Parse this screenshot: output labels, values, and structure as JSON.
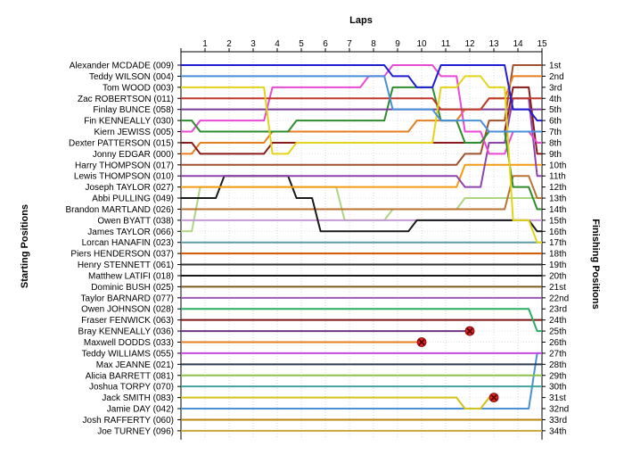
{
  "chart_data": {
    "type": "line",
    "title": "",
    "xlabel": "Laps",
    "ylabel_left": "Starting Positions",
    "ylabel_right": "Finishing Positions",
    "x": [
      1,
      2,
      3,
      4,
      5,
      6,
      7,
      8,
      9,
      10,
      11,
      12,
      13,
      14,
      15
    ],
    "finishing_labels": [
      "1st",
      "2nd",
      "3rd",
      "4th",
      "5th",
      "6th",
      "7th",
      "8th",
      "9th",
      "10th",
      "11th",
      "12th",
      "13th",
      "14th",
      "15th",
      "16th",
      "17th",
      "18th",
      "19th",
      "20th",
      "21st",
      "22nd",
      "23rd",
      "24th",
      "25th",
      "26th",
      "27th",
      "28th",
      "29th",
      "30th",
      "31st",
      "32nd",
      "33rd",
      "34th"
    ],
    "grid": true,
    "retirement_marker": "red-x",
    "series": [
      {
        "name": "Alexander MCDADE (009)",
        "color": "#1f1fd1",
        "retired_after": null,
        "positions": [
          1,
          1,
          1,
          1,
          1,
          1,
          1,
          1,
          1,
          2,
          3,
          1,
          1,
          1,
          5,
          6
        ]
      },
      {
        "name": "Teddy WILSON (004)",
        "color": "#4a90d9",
        "retired_after": null,
        "positions": [
          2,
          2,
          2,
          2,
          2,
          2,
          2,
          2,
          2,
          5,
          5,
          6,
          6,
          7,
          7,
          7
        ]
      },
      {
        "name": "Tom WOOD (003)",
        "color": "#e3d41a",
        "retired_after": null,
        "positions": [
          3,
          3,
          3,
          3,
          9,
          8,
          8,
          8,
          8,
          8,
          8,
          3,
          2,
          3,
          15,
          17
        ]
      },
      {
        "name": "Zac ROBERTSON (011)",
        "color": "#c0392b",
        "retired_after": null,
        "positions": [
          4,
          4,
          4,
          4,
          4,
          4,
          4,
          4,
          4,
          4,
          4,
          5,
          5,
          4,
          4,
          4
        ]
      },
      {
        "name": "Finlay BUNCE (058)",
        "color": "#7d3c98",
        "retired_after": null,
        "positions": [
          5,
          5,
          5,
          5,
          5,
          5,
          5,
          5,
          5,
          5,
          5,
          5,
          5,
          5,
          5,
          5
        ]
      },
      {
        "name": "Fin KENNEALLY (030)",
        "color": "#2e8b2e",
        "retired_after": null,
        "positions": [
          6,
          7,
          7,
          7,
          7,
          6,
          6,
          6,
          6,
          3,
          3,
          6,
          8,
          7,
          12,
          14
        ]
      },
      {
        "name": "Kiern JEWISS (005)",
        "color": "#e84ad3",
        "retired_after": null,
        "positions": [
          7,
          6,
          6,
          6,
          3,
          3,
          3,
          3,
          2,
          1,
          1,
          2,
          7,
          9,
          7,
          8
        ]
      },
      {
        "name": "Dexter PATTERSON (015)",
        "color": "#8b1a1a",
        "retired_after": null,
        "positions": [
          8,
          9,
          9,
          9,
          8,
          8,
          8,
          8,
          8,
          8,
          8,
          8,
          8,
          7,
          3,
          9
        ]
      },
      {
        "name": "Jonny EDGAR (000)",
        "color": "#e67e22",
        "retired_after": null,
        "positions": [
          9,
          8,
          8,
          8,
          7,
          7,
          7,
          7,
          7,
          7,
          6,
          6,
          5,
          4,
          2,
          2
        ]
      },
      {
        "name": "Harry THOMPSON (017)",
        "color": "#a0522d",
        "retired_after": null,
        "positions": [
          10,
          10,
          10,
          10,
          10,
          10,
          10,
          10,
          10,
          10,
          10,
          10,
          9,
          6,
          1,
          1
        ]
      },
      {
        "name": "Lewis THOMPSON (010)",
        "color": "#8e44ad",
        "retired_after": null,
        "positions": [
          11,
          11,
          11,
          11,
          11,
          11,
          11,
          11,
          11,
          11,
          11,
          11,
          12,
          8,
          4,
          11
        ]
      },
      {
        "name": "Joseph TAYLOR (027)",
        "color": "#f39c12",
        "retired_after": null,
        "positions": [
          12,
          12,
          12,
          12,
          12,
          12,
          12,
          12,
          12,
          12,
          12,
          12,
          10,
          10,
          10,
          10
        ]
      },
      {
        "name": "Abbi PULLING (049)",
        "color": "#1a1a1a",
        "retired_after": null,
        "positions": [
          13,
          13,
          11,
          11,
          11,
          13,
          16,
          16,
          16,
          16,
          15,
          15,
          15,
          15,
          15,
          16
        ]
      },
      {
        "name": "Brandon MARTLAND (026)",
        "color": "#b87333",
        "retired_after": null,
        "positions": [
          14,
          14,
          14,
          14,
          14,
          14,
          14,
          14,
          14,
          14,
          14,
          14,
          14,
          14,
          11,
          13
        ]
      },
      {
        "name": "Owen BYATT (038)",
        "color": "#c39bd3",
        "retired_after": null,
        "positions": [
          15,
          15,
          15,
          15,
          15,
          15,
          15,
          15,
          15,
          15,
          15,
          15,
          15,
          15,
          15,
          15
        ]
      },
      {
        "name": "James TAYLOR (066)",
        "color": "#aed581",
        "retired_after": null,
        "positions": [
          16,
          12,
          12,
          12,
          12,
          12,
          12,
          15,
          15,
          14,
          14,
          14,
          13,
          13,
          13,
          13
        ]
      },
      {
        "name": "Lorcan HANAFIN (023)",
        "color": "#5f9ea0",
        "retired_after": null,
        "positions": [
          17,
          17,
          17,
          17,
          17,
          17,
          17,
          17,
          17,
          17,
          17,
          17,
          17,
          17,
          17,
          17
        ]
      },
      {
        "name": "Piers HENDERSON (037)",
        "color": "#d35400",
        "retired_after": null,
        "positions": [
          18,
          18,
          18,
          18,
          18,
          18,
          18,
          18,
          18,
          18,
          18,
          18,
          18,
          18,
          18,
          18
        ]
      },
      {
        "name": "Henry STENNETT (061)",
        "color": "#333333",
        "retired_after": null,
        "positions": [
          19,
          19,
          19,
          19,
          19,
          19,
          19,
          19,
          19,
          19,
          19,
          19,
          19,
          19,
          19,
          19
        ]
      },
      {
        "name": "Matthew LATIFI (018)",
        "color": "#1a1a1a",
        "retired_after": null,
        "positions": [
          20,
          20,
          20,
          20,
          20,
          20,
          20,
          20,
          20,
          20,
          20,
          20,
          20,
          20,
          20,
          20
        ]
      },
      {
        "name": "Dominic BUSH (025)",
        "color": "#7a5c1e",
        "retired_after": null,
        "positions": [
          21,
          21,
          21,
          21,
          21,
          21,
          21,
          21,
          21,
          21,
          21,
          21,
          21,
          21,
          21,
          21
        ]
      },
      {
        "name": "Taylor BARNARD (077)",
        "color": "#9b59b6",
        "retired_after": null,
        "positions": [
          22,
          22,
          22,
          22,
          22,
          22,
          22,
          22,
          22,
          22,
          22,
          22,
          22,
          22,
          22,
          22
        ]
      },
      {
        "name": "Owen JOHNSON (028)",
        "color": "#27ae60",
        "retired_after": null,
        "positions": [
          23,
          23,
          23,
          23,
          23,
          23,
          23,
          23,
          23,
          23,
          23,
          23,
          23,
          23,
          23,
          25
        ]
      },
      {
        "name": "Fraser FENWICK (063)",
        "color": "#7f1414",
        "retired_after": null,
        "positions": [
          24,
          24,
          24,
          24,
          24,
          24,
          24,
          24,
          24,
          24,
          24,
          24,
          24,
          24,
          24,
          24
        ]
      },
      {
        "name": "Bray KENNEALLY (036)",
        "color": "#6c3483",
        "retired_after": 12,
        "positions": [
          25,
          25,
          25,
          25,
          25,
          25,
          25,
          25,
          25,
          25,
          25,
          25,
          25
        ]
      },
      {
        "name": "Maxwell DODDS (033)",
        "color": "#e67e22",
        "retired_after": 10,
        "positions": [
          26,
          26,
          26,
          26,
          26,
          26,
          26,
          26,
          26,
          26,
          26
        ]
      },
      {
        "name": "Teddy WILLIAMS (055)",
        "color": "#c54ae0",
        "retired_after": null,
        "positions": [
          27,
          27,
          27,
          27,
          27,
          27,
          27,
          27,
          27,
          27,
          27,
          27,
          27,
          27,
          27,
          27
        ]
      },
      {
        "name": "Max JEANNE (021)",
        "color": "#2c3e50",
        "retired_after": null,
        "positions": [
          28,
          28,
          28,
          28,
          28,
          28,
          28,
          28,
          28,
          28,
          28,
          28,
          28,
          28,
          28,
          28
        ]
      },
      {
        "name": "Alicia BARRETT (081)",
        "color": "#8bc34a",
        "retired_after": null,
        "positions": [
          29,
          29,
          29,
          29,
          29,
          29,
          29,
          29,
          29,
          29,
          29,
          29,
          29,
          29,
          29,
          29
        ]
      },
      {
        "name": "Joshua TORPY (070)",
        "color": "#45a29e",
        "retired_after": null,
        "positions": [
          30,
          30,
          30,
          30,
          30,
          30,
          30,
          30,
          30,
          30,
          30,
          30,
          30,
          30,
          30,
          30
        ]
      },
      {
        "name": "Jack SMITH (083)",
        "color": "#d4c21a",
        "retired_after": 13,
        "positions": [
          31,
          31,
          31,
          31,
          31,
          31,
          31,
          31,
          31,
          31,
          31,
          31,
          32,
          31
        ]
      },
      {
        "name": "Jamie DAY (042)",
        "color": "#4a90d9",
        "retired_after": null,
        "positions": [
          32,
          32,
          32,
          32,
          32,
          32,
          32,
          32,
          32,
          32,
          32,
          32,
          32,
          32,
          32,
          27
        ]
      },
      {
        "name": "Josh RAFFERTY (060)",
        "color": "#b8860b",
        "retired_after": null,
        "positions": [
          33,
          33,
          33,
          33,
          33,
          33,
          33,
          33,
          33,
          33,
          33,
          33,
          33,
          33,
          33,
          33
        ]
      },
      {
        "name": "Joe TURNEY (096)",
        "color": "#c7a63c",
        "retired_after": null,
        "positions": [
          34,
          34,
          34,
          34,
          34,
          34,
          34,
          34,
          34,
          34,
          34,
          34,
          34,
          34,
          34,
          34
        ]
      }
    ]
  }
}
